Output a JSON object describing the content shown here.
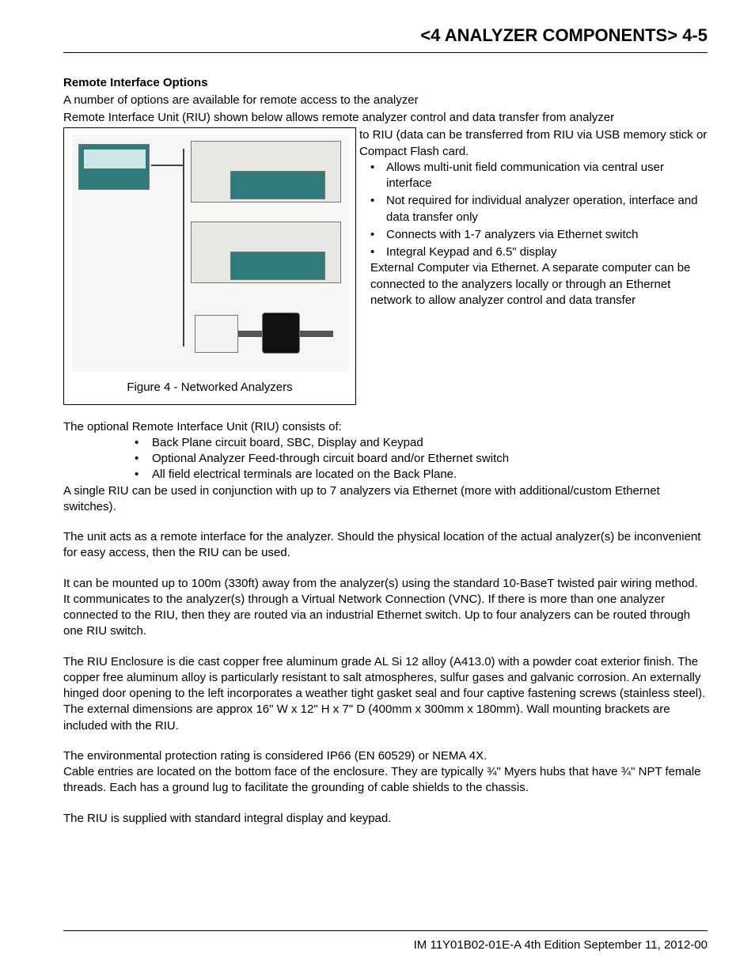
{
  "header": {
    "title": "<4 ANALYZER COMPONENTS>  4-5"
  },
  "section": {
    "title": "Remote Interface Options",
    "intro1": "A number of options are available for remote access to the analyzer",
    "intro2": "Remote Interface Unit (RIU) shown below allows remote analyzer control and data transfer from analyzer"
  },
  "figure": {
    "caption": "Figure 4 - Networked Analyzers"
  },
  "right": {
    "lead": "to RIU (data can be transferred from RIU via USB memory stick or Compact Flash card.",
    "b1": "Allows multi-unit field communication via central user interface",
    "b2": "Not required for individual analyzer operation, interface and data transfer only",
    "b3": "Connects with 1-7 analyzers via Ethernet switch",
    "b4": "Integral Keypad and 6.5\" display",
    "tail": "External Computer via Ethernet.  A separate computer can be connected to the analyzers locally or through an Ethernet network to allow analyzer control and data transfer"
  },
  "body": {
    "p1": "The optional Remote Interface Unit (RIU) consists of:",
    "li1": "Back Plane circuit board, SBC, Display and Keypad",
    "li2": "Optional Analyzer Feed-through circuit board and/or Ethernet switch",
    "li3": "All field electrical terminals are located on the Back Plane.",
    "p2": "A single RIU can be used in conjunction with up to 7 analyzers via Ethernet (more with additional/custom Ethernet switches).",
    "p3": "The unit acts as a remote interface for the analyzer. Should the physical location of the actual analyzer(s) be inconvenient for easy access, then the RIU can be used.",
    "p4": "It can be mounted up to 100m (330ft) away from the analyzer(s) using the standard 10-BaseT twisted pair wiring method. It communicates to the analyzer(s) through a Virtual Network Connection (VNC). If there is more than one analyzer connected to the RIU, then they are routed via an industrial Ethernet switch. Up to four analyzers can be routed through one RIU switch.",
    "p5": "The RIU Enclosure is die cast copper free aluminum grade AL Si 12 alloy (A413.0) with a powder coat exterior finish. The copper free aluminum alloy is particularly resistant to salt atmospheres, sulfur gases and galvanic corrosion. An externally hinged door opening to the left incorporates a weather tight gasket seal and four captive fastening screws (stainless steel). The external dimensions are approx 16\" W x 12\" H x 7\" D (400mm x 300mm x 180mm). Wall mounting brackets are included with the RIU.",
    "p6": "The environmental protection rating is considered IP66 (EN 60529) or NEMA 4X.",
    "p7": "Cable entries are located on the bottom face of the enclosure. They are typically ¾\" Myers hubs that have ¾\" NPT female threads. Each has a ground lug to facilitate the grounding of cable shields to the chassis.",
    "p8": "The RIU is supplied with standard integral display and keypad."
  },
  "footer": {
    "text": "IM 11Y01B02-01E-A  4th Edition September 11, 2012-00"
  }
}
